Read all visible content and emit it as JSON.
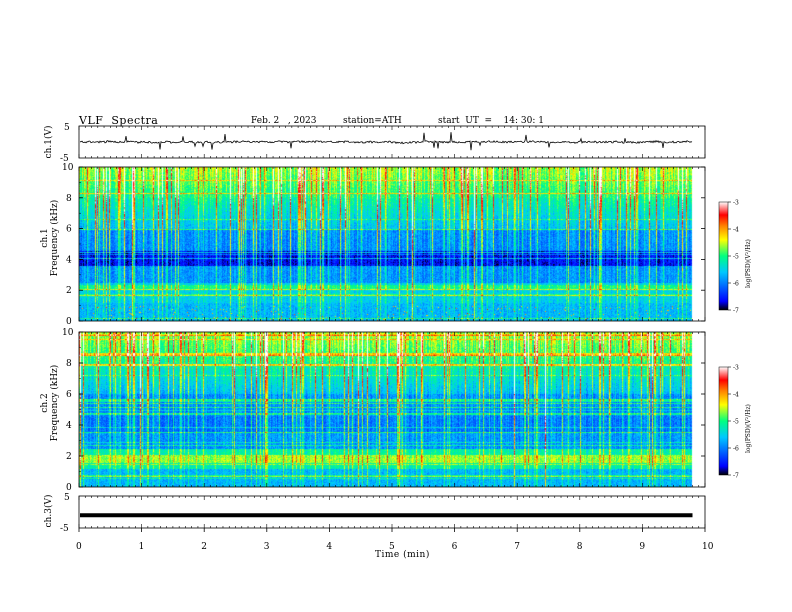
{
  "header": {
    "title": "VLF  Spectra",
    "date": "Feb. 2   , 2023",
    "station": "station=ATH",
    "start_ut": "start  UT  =    14: 30: 1"
  },
  "chart_data": [
    {
      "type": "line",
      "panel": "ch1-waveform",
      "ylabel": "ch.1(V)",
      "ylim": [
        -5,
        5
      ],
      "yticks": [
        "5",
        "-5"
      ],
      "xlim": [
        0,
        10
      ],
      "data_extent_min": 9.8,
      "series": [
        {
          "values_description_note": "",
          "mean": 0.0,
          "amplitude": 0.6
        }
      ]
    },
    {
      "type": "heatmap",
      "panel": "ch1-spectrogram",
      "ylabel_lines": [
        "ch.1",
        "Frequency  (kHz)"
      ],
      "ylim": [
        0,
        10
      ],
      "yticks": [
        "0",
        "2",
        "4",
        "6",
        "8",
        "10"
      ],
      "xlim": [
        0,
        10
      ],
      "data_extent_min": 9.8,
      "colorbar": {
        "label": "log(PSD)(V²/Hz)",
        "range": [
          -7,
          -3
        ],
        "ticks": [
          "-3",
          "-4",
          "-5",
          "-6",
          "-7"
        ],
        "colors": [
          "#000000",
          "#0000ff",
          "#00c8ff",
          "#00ff80",
          "#ffff00",
          "#ff8000",
          "#ff0000",
          "#ffffff"
        ]
      }
    },
    {
      "type": "heatmap",
      "panel": "ch2-spectrogram",
      "ylabel_lines": [
        "ch.2",
        "Frequency  (kHz)"
      ],
      "ylim": [
        0,
        10
      ],
      "yticks": [
        "0",
        "2",
        "4",
        "6",
        "8",
        "10"
      ],
      "xlim": [
        0,
        10
      ],
      "data_extent_min": 9.8,
      "colorbar": {
        "label": "log(PSD)(V²/Hz)",
        "range": [
          -7,
          -3
        ],
        "ticks": [
          "-3",
          "-4",
          "-5",
          "-6",
          "-7"
        ],
        "colors": [
          "#000000",
          "#0000ff",
          "#00c8ff",
          "#00ff80",
          "#ffff00",
          "#ff8000",
          "#ff0000",
          "#ffffff"
        ]
      }
    },
    {
      "type": "line",
      "panel": "ch3-waveform",
      "ylabel": "ch.3(V)",
      "ylim": [
        -5,
        5
      ],
      "yticks": [
        "5",
        "-5"
      ],
      "xlim": [
        0,
        10
      ],
      "data_extent_min": 9.8,
      "series": [
        {
          "mean": -1.0,
          "amplitude": 0.0
        }
      ]
    }
  ],
  "x_axis": {
    "label": "Time  (min)",
    "ticks": [
      "0",
      "1",
      "2",
      "3",
      "4",
      "5",
      "6",
      "7",
      "8",
      "9",
      "10"
    ]
  }
}
